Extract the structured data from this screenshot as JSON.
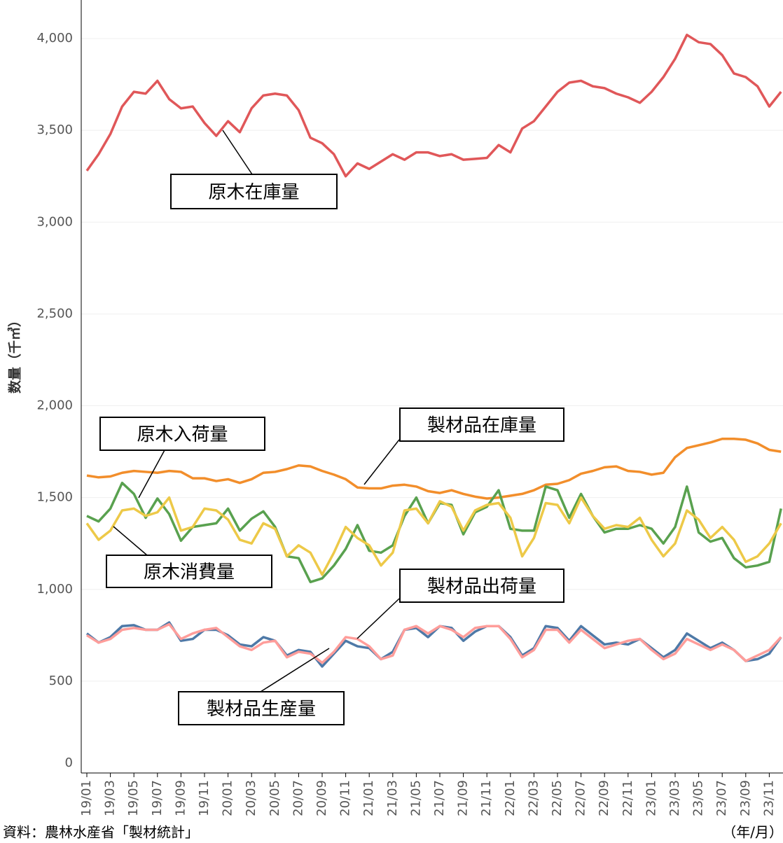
{
  "chart_data": {
    "type": "line",
    "y_label": "数量（千㎥）",
    "x_unit": "（年/月）",
    "source": "資料：農林水産省「製材統計」",
    "categories": [
      "19/01",
      null,
      "19/03",
      null,
      "19/05",
      null,
      "19/07",
      null,
      "19/09",
      null,
      "19/11",
      null,
      "20/01",
      null,
      "20/03",
      null,
      "20/05",
      null,
      "20/07",
      null,
      "20/09",
      null,
      "20/11",
      null,
      "21/01",
      null,
      "21/03",
      null,
      "21/05",
      null,
      "21/07",
      null,
      "21/09",
      null,
      "21/11",
      null,
      "22/01",
      null,
      "22/03",
      null,
      "22/05",
      null,
      "22/07",
      null,
      "22/09",
      null,
      "22/11",
      null,
      "23/01",
      null,
      "23/03",
      null,
      "23/05",
      null,
      "23/07",
      null,
      "23/09",
      null,
      "23/11",
      null
    ],
    "ylim": [
      0,
      4210
    ],
    "yticks": [
      0,
      500,
      {
        "value": 1000,
        "label": "1,000"
      },
      {
        "value": 1500,
        "label": "1,500"
      },
      {
        "value": 2000,
        "label": "2,000"
      },
      {
        "value": 2500,
        "label": "2,500"
      },
      {
        "value": 3000,
        "label": "3,000"
      },
      {
        "value": 3500,
        "label": "3,500"
      },
      {
        "value": 4000,
        "label": "4,000"
      }
    ],
    "grid": true,
    "series": [
      {
        "name": "原木在庫量",
        "color": "#e05759",
        "values": [
          3280,
          3370,
          3480,
          3630,
          3710,
          3700,
          3770,
          3670,
          3620,
          3630,
          3540,
          3470,
          3550,
          3490,
          3620,
          3690,
          3700,
          3690,
          3610,
          3460,
          3430,
          3370,
          3250,
          3320,
          3290,
          3330,
          3370,
          3340,
          3380,
          3380,
          3360,
          3370,
          3340,
          3345,
          3350,
          3420,
          3380,
          3510,
          3550,
          3630,
          3710,
          3760,
          3770,
          3740,
          3730,
          3700,
          3680,
          3650,
          3710,
          3790,
          3890,
          4020,
          3980,
          3970,
          3910,
          3810,
          3790,
          3740,
          3630,
          3710
        ]
      },
      {
        "name": "製材品在庫量",
        "color": "#f28e2b",
        "values": [
          1620,
          1610,
          1615,
          1635,
          1645,
          1640,
          1635,
          1645,
          1640,
          1605,
          1605,
          1590,
          1600,
          1580,
          1600,
          1635,
          1640,
          1655,
          1675,
          1670,
          1645,
          1625,
          1600,
          1555,
          1550,
          1550,
          1565,
          1570,
          1560,
          1535,
          1525,
          1540,
          1520,
          1505,
          1495,
          1500,
          1510,
          1520,
          1540,
          1570,
          1575,
          1595,
          1630,
          1645,
          1665,
          1670,
          1645,
          1640,
          1625,
          1635,
          1720,
          1770,
          1785,
          1800,
          1820,
          1820,
          1815,
          1795,
          1760,
          1750
        ]
      },
      {
        "name": "原木入荷量",
        "color": "#59a14f",
        "values": [
          1400,
          1370,
          1440,
          1580,
          1520,
          1390,
          1495,
          1410,
          1265,
          1340,
          1350,
          1360,
          1440,
          1320,
          1385,
          1425,
          1340,
          1180,
          1170,
          1040,
          1060,
          1130,
          1220,
          1350,
          1210,
          1200,
          1240,
          1400,
          1500,
          1360,
          1470,
          1460,
          1300,
          1420,
          1450,
          1540,
          1330,
          1320,
          1320,
          1560,
          1540,
          1390,
          1520,
          1400,
          1310,
          1330,
          1330,
          1350,
          1330,
          1250,
          1340,
          1560,
          1310,
          1260,
          1280,
          1170,
          1120,
          1130,
          1150,
          1440
        ]
      },
      {
        "name": "原木消費量",
        "color": "#edc948",
        "values": [
          1360,
          1270,
          1320,
          1430,
          1440,
          1400,
          1420,
          1500,
          1320,
          1340,
          1440,
          1430,
          1380,
          1270,
          1250,
          1360,
          1330,
          1180,
          1240,
          1200,
          1080,
          1200,
          1340,
          1280,
          1240,
          1130,
          1200,
          1430,
          1440,
          1360,
          1480,
          1450,
          1320,
          1430,
          1460,
          1470,
          1390,
          1180,
          1280,
          1470,
          1460,
          1360,
          1500,
          1400,
          1330,
          1350,
          1340,
          1390,
          1270,
          1180,
          1250,
          1430,
          1380,
          1280,
          1340,
          1270,
          1150,
          1180,
          1250,
          1360
        ]
      },
      {
        "name": "製材品出荷量",
        "color": "#4e79a7",
        "values": [
          760,
          710,
          740,
          800,
          805,
          780,
          780,
          820,
          720,
          730,
          780,
          780,
          750,
          700,
          690,
          740,
          720,
          640,
          670,
          660,
          580,
          650,
          720,
          690,
          680,
          620,
          660,
          780,
          790,
          740,
          800,
          790,
          720,
          770,
          800,
          800,
          740,
          640,
          680,
          800,
          790,
          720,
          800,
          750,
          700,
          710,
          700,
          730,
          680,
          630,
          670,
          760,
          720,
          680,
          710,
          670,
          610,
          620,
          650,
          740
        ]
      },
      {
        "name": "製材品生産量",
        "color": "#ff9d9a",
        "values": [
          750,
          710,
          730,
          780,
          790,
          780,
          780,
          810,
          730,
          760,
          780,
          790,
          740,
          690,
          670,
          710,
          720,
          630,
          660,
          650,
          600,
          660,
          740,
          730,
          690,
          620,
          640,
          780,
          800,
          760,
          800,
          780,
          740,
          790,
          800,
          800,
          730,
          630,
          670,
          780,
          780,
          710,
          780,
          730,
          680,
          700,
          720,
          730,
          670,
          620,
          650,
          730,
          700,
          670,
          700,
          670,
          610,
          640,
          670,
          740
        ]
      }
    ]
  }
}
